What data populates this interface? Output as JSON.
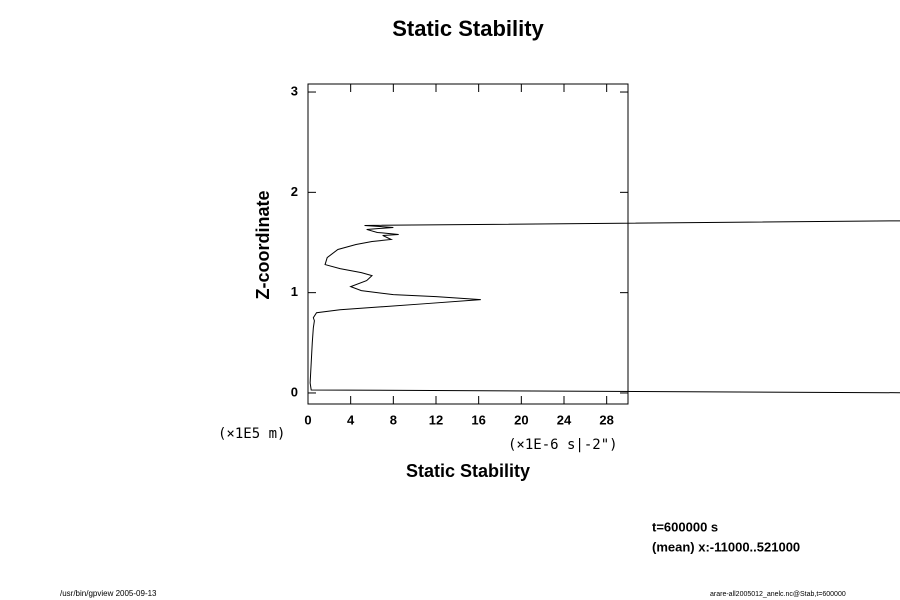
{
  "chart_data": {
    "type": "line",
    "title": "Static Stability",
    "x_label": "Static Stability",
    "y_label": "Z-coordinate",
    "x_unit": "(×1E-6 s|-2\")",
    "y_unit": "(×1E5 m)",
    "annotations": [
      "t=600000 s",
      "(mean) x:-11000..521000"
    ],
    "footer_left": "/usr/bin/gpview 2005-09-13",
    "footer_right": "arare-all2005012_anelc.nc@Stab,t=600000",
    "xlim": [
      0,
      30
    ],
    "ylim": [
      -0.11,
      3.08
    ],
    "xticks": [
      0,
      4,
      8,
      12,
      16,
      20,
      24,
      28
    ],
    "yticks": [
      0,
      1,
      2,
      3
    ],
    "series": [
      {
        "color": "#000000",
        "x": [
          60,
          0.3,
          0.2,
          0.3,
          0.4,
          0.5,
          0.6,
          0.5,
          0.8,
          3,
          7,
          11,
          16.2,
          12,
          8,
          5,
          4,
          5.5,
          6,
          5,
          3,
          1.6,
          1.8,
          2.8,
          4.5,
          6,
          7.8,
          7,
          8.5,
          6.5,
          5.5,
          8,
          5.3,
          60
        ],
        "values": [
          0.0,
          0.03,
          0.1,
          0.3,
          0.5,
          0.65,
          0.72,
          0.75,
          0.8,
          0.83,
          0.86,
          0.89,
          0.93,
          0.96,
          0.98,
          1.02,
          1.06,
          1.12,
          1.17,
          1.2,
          1.24,
          1.28,
          1.35,
          1.43,
          1.48,
          1.51,
          1.53,
          1.57,
          1.58,
          1.6,
          1.63,
          1.65,
          1.67,
          1.72
        ]
      }
    ]
  }
}
